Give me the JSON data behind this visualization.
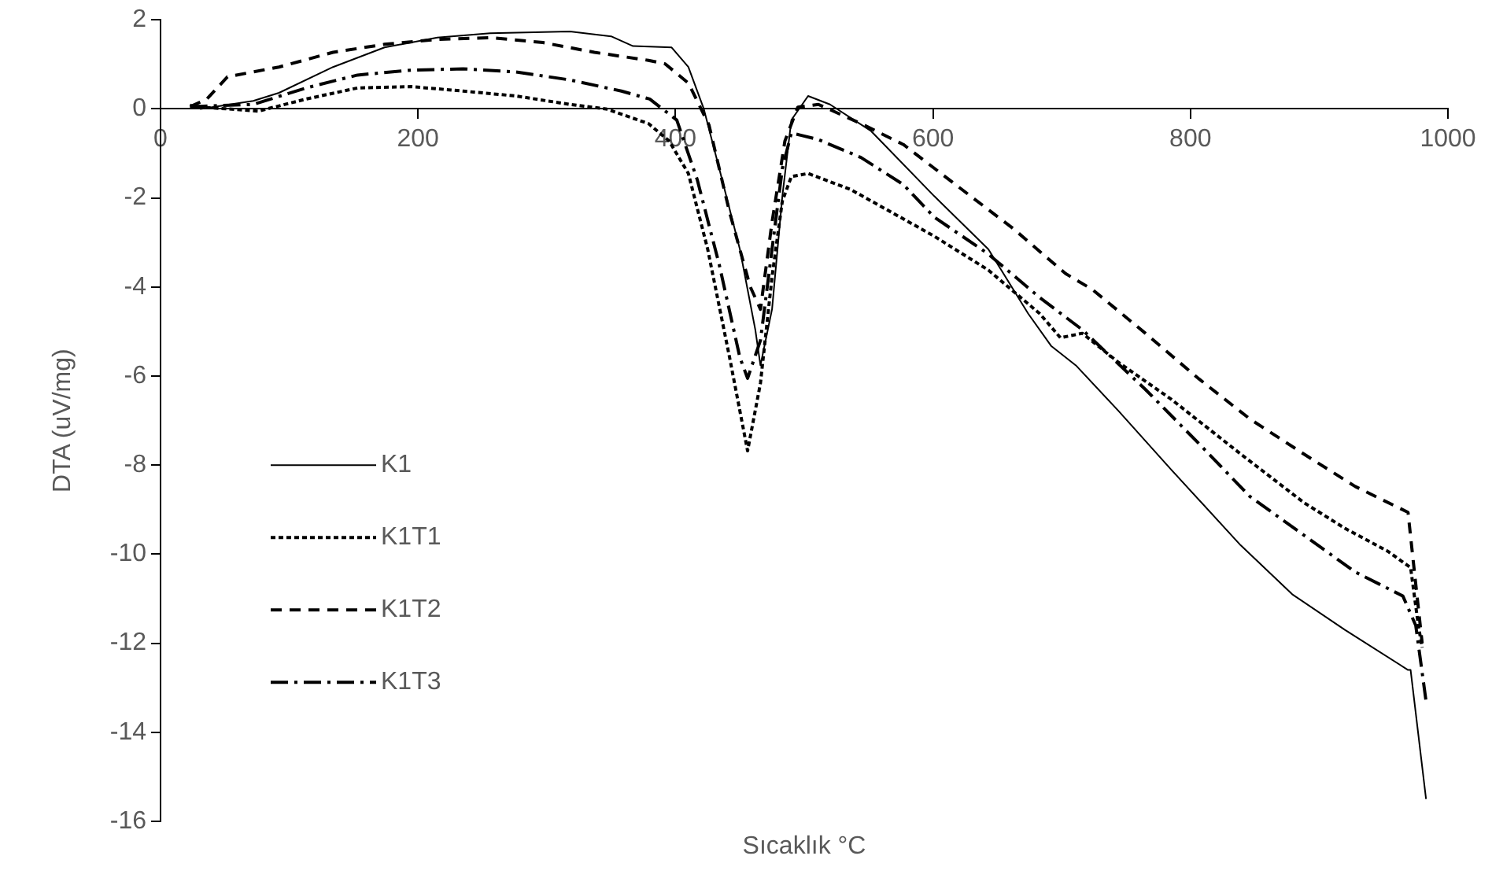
{
  "chart_data": {
    "type": "line",
    "xlabel": "Sıcaklık °C",
    "ylabel": "DTA (uV/mg)",
    "xlim": [
      0,
      1000
    ],
    "xticks": [
      0,
      200,
      400,
      600,
      800,
      1000
    ],
    "ylim": [
      -16,
      2
    ],
    "yticks": [
      -16,
      -14,
      -12,
      -10,
      -8,
      -6,
      -4,
      -2,
      0,
      2
    ],
    "grid": false,
    "legend": "bottom left",
    "marker": "none",
    "series": [
      {
        "name": "K1",
        "color": "#000000",
        "line_style": "solid",
        "x": [
          23,
          31,
          72,
          92,
          134,
          174,
          215,
          256,
          318,
          350,
          367,
          397,
          410,
          422,
          434,
          450,
          462,
          466,
          475,
          483,
          490,
          503,
          520,
          552,
          601,
          643,
          674,
          692,
          711,
          744,
          785,
          839,
          879,
          920,
          969,
          971,
          983
        ],
        "values": [
          0.1,
          0,
          0.18,
          0.36,
          0.94,
          1.38,
          1.6,
          1.7,
          1.74,
          1.63,
          1.41,
          1.38,
          0.94,
          0,
          -1.34,
          -3.15,
          -4.96,
          -5.76,
          -4.5,
          -1.96,
          -0.25,
          0.29,
          0.1,
          -0.5,
          -1.96,
          -3.15,
          -4.6,
          -5.33,
          -5.76,
          -6.78,
          -8.1,
          -9.8,
          -10.9,
          -11.7,
          -12.6,
          -12.6,
          -15.5
        ]
      },
      {
        "name": "K1T1",
        "color": "#000000",
        "line_style": "dotted",
        "x": [
          23,
          52,
          76,
          113,
          153,
          195,
          235,
          276,
          318,
          346,
          379,
          395,
          410,
          425,
          442,
          456,
          466,
          475,
          483,
          490,
          503,
          536,
          585,
          601,
          643,
          683,
          699,
          716,
          744,
          785,
          839,
          888,
          920,
          953,
          971,
          977,
          980
        ],
        "values": [
          0.05,
          0,
          -0.05,
          0.22,
          0.47,
          0.5,
          0.4,
          0.29,
          0.1,
          0,
          -0.33,
          -0.72,
          -1.45,
          -3.15,
          -5.58,
          -7.68,
          -6.16,
          -3.77,
          -2.07,
          -1.52,
          -1.45,
          -1.81,
          -2.6,
          -2.86,
          -3.62,
          -4.6,
          -5.14,
          -5.04,
          -5.69,
          -6.52,
          -7.75,
          -8.84,
          -9.42,
          -9.93,
          -10.3,
          -11.6,
          -12.1
        ]
      },
      {
        "name": "K1T2",
        "color": "#000000",
        "line_style": "dashed",
        "x": [
          23,
          36,
          52,
          92,
          134,
          174,
          215,
          256,
          297,
          337,
          379,
          392,
          410,
          426,
          442,
          458,
          466,
          475,
          485,
          495,
          511,
          544,
          577,
          622,
          662,
          703,
          724,
          765,
          806,
          846,
          888,
          928,
          969,
          973,
          980
        ],
        "values": [
          0.05,
          0.22,
          0.72,
          0.94,
          1.27,
          1.45,
          1.56,
          1.6,
          1.49,
          1.27,
          1.09,
          1.01,
          0.58,
          -0.36,
          -2.32,
          -3.99,
          -4.5,
          -2.54,
          -0.72,
          0.04,
          0.1,
          -0.33,
          -0.8,
          -1.8,
          -2.68,
          -3.7,
          -4.06,
          -5.04,
          -6.05,
          -6.96,
          -7.75,
          -8.48,
          -9.06,
          -10.14,
          -12
        ]
      },
      {
        "name": "K1T3",
        "color": "#000000",
        "line_style": "dashdot",
        "x": [
          23,
          72,
          113,
          153,
          195,
          235,
          276,
          318,
          358,
          380,
          401,
          417,
          434,
          450,
          456,
          466,
          475,
          483,
          490,
          511,
          544,
          577,
          601,
          643,
          683,
          716,
          765,
          806,
          846,
          888,
          928,
          965,
          975,
          983
        ],
        "values": [
          0.05,
          0.1,
          0.47,
          0.76,
          0.87,
          0.9,
          0.83,
          0.65,
          0.4,
          0.22,
          -0.25,
          -1.6,
          -3.5,
          -5.58,
          -6.05,
          -5.2,
          -3.15,
          -1.34,
          -0.54,
          -0.69,
          -1.09,
          -1.7,
          -2.43,
          -3.26,
          -4.24,
          -4.96,
          -6.3,
          -7.5,
          -8.7,
          -9.57,
          -10.4,
          -10.94,
          -11.6,
          -13.3
        ]
      }
    ]
  }
}
